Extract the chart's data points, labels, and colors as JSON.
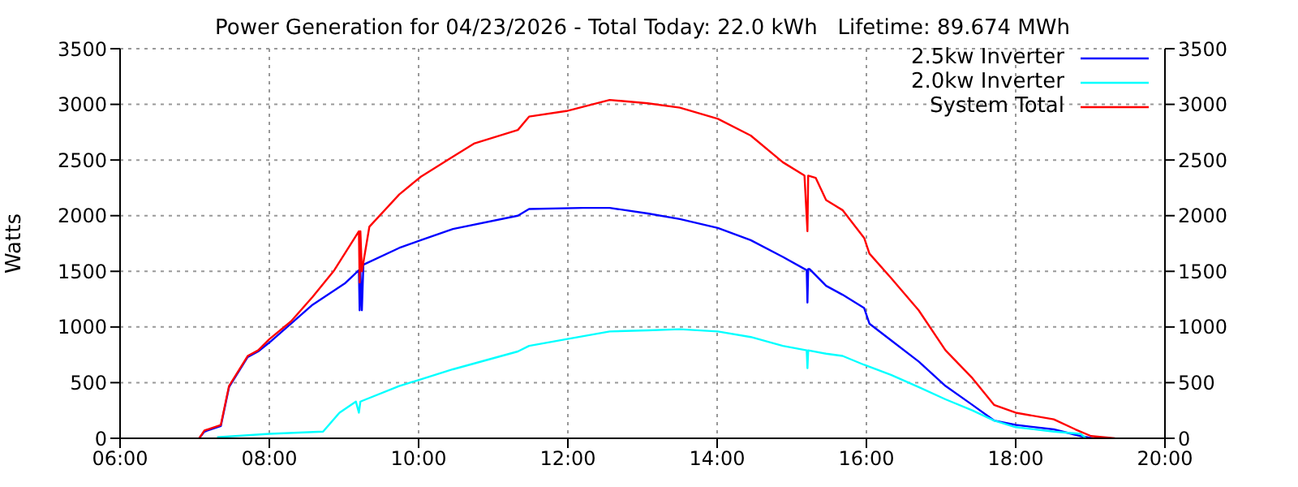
{
  "chart_data": {
    "type": "line",
    "title": "Power Generation for 04/23/2026 - Total Today: 22.0 kWh   Lifetime: 89.674 MWh",
    "ylabel": "Watts",
    "xlim": [
      6,
      20
    ],
    "xticks": [
      {
        "value": 6,
        "label": "06:00"
      },
      {
        "value": 8,
        "label": "08:00"
      },
      {
        "value": 10,
        "label": "10:00"
      },
      {
        "value": 12,
        "label": "12:00"
      },
      {
        "value": 14,
        "label": "14:00"
      },
      {
        "value": 16,
        "label": "16:00"
      },
      {
        "value": 18,
        "label": "18:00"
      },
      {
        "value": 20,
        "label": "20:00"
      }
    ],
    "ylim": [
      0,
      3500
    ],
    "yticks": [
      0,
      500,
      1000,
      1500,
      2000,
      2500,
      3000,
      3500
    ],
    "y2lim": [
      0,
      3500
    ],
    "y2ticks": [
      0,
      500,
      1000,
      1500,
      2000,
      2500,
      3000,
      3500
    ],
    "grid": true,
    "legend": "top right",
    "marker": "none",
    "line_style": "solid",
    "series": [
      {
        "name": "2.5kw Inverter",
        "color": "#0000ff",
        "x": [
          7.06,
          7.13,
          7.35,
          7.46,
          7.71,
          7.85,
          8.0,
          8.58,
          9.01,
          9.2,
          9.21,
          9.22,
          9.24,
          9.26,
          9.74,
          10.03,
          10.46,
          11.33,
          11.48,
          12.2,
          12.56,
          13.07,
          13.5,
          14.01,
          14.45,
          14.88,
          15.2,
          15.21,
          15.22,
          15.24,
          15.46,
          15.68,
          15.97,
          16.04,
          16.33,
          16.7,
          17.06,
          17.42,
          17.71,
          18.0,
          18.51,
          18.87,
          19.03
        ],
        "values": [
          0,
          60,
          110,
          460,
          730,
          780,
          860,
          1200,
          1390,
          1510,
          1150,
          1510,
          1150,
          1560,
          1710,
          1780,
          1880,
          2000,
          2060,
          2070,
          2070,
          2020,
          1970,
          1890,
          1780,
          1630,
          1510,
          1220,
          1520,
          1520,
          1370,
          1290,
          1170,
          1030,
          880,
          690,
          470,
          300,
          160,
          120,
          80,
          20,
          0
        ]
      },
      {
        "name": "2.0kw Inverter",
        "color": "#00ffff",
        "x": [
          7.3,
          8.0,
          8.72,
          8.94,
          9.16,
          9.2,
          9.22,
          9.74,
          10.03,
          10.46,
          11.33,
          11.48,
          11.98,
          12.56,
          13.07,
          13.5,
          14.01,
          14.45,
          14.88,
          15.2,
          15.21,
          15.22,
          15.46,
          15.68,
          15.97,
          16.33,
          16.7,
          17.06,
          17.42,
          17.71,
          18.0,
          18.51,
          18.87,
          18.94
        ],
        "values": [
          10,
          40,
          60,
          230,
          330,
          230,
          330,
          470,
          530,
          620,
          780,
          830,
          890,
          960,
          970,
          980,
          960,
          910,
          830,
          790,
          630,
          790,
          760,
          740,
          660,
          570,
          460,
          350,
          250,
          160,
          100,
          60,
          40,
          0
        ]
      },
      {
        "name": "System Total",
        "color": "#ff0000",
        "x": [
          7.06,
          7.13,
          7.35,
          7.46,
          7.71,
          7.85,
          8.0,
          8.29,
          8.58,
          8.87,
          9.2,
          9.21,
          9.22,
          9.24,
          9.34,
          9.74,
          10.03,
          10.46,
          10.75,
          11.33,
          11.48,
          11.98,
          12.56,
          13.07,
          13.5,
          14.01,
          14.45,
          14.88,
          15.17,
          15.21,
          15.22,
          15.32,
          15.46,
          15.68,
          15.97,
          16.04,
          16.33,
          16.7,
          17.06,
          17.42,
          17.71,
          18.0,
          18.51,
          18.8,
          19.01,
          19.33
        ],
        "values": [
          0,
          70,
          120,
          470,
          740,
          790,
          890,
          1050,
          1270,
          1510,
          1860,
          1400,
          1860,
          1500,
          1900,
          2190,
          2350,
          2530,
          2650,
          2770,
          2890,
          2940,
          3040,
          3010,
          2970,
          2870,
          2720,
          2480,
          2360,
          1860,
          2360,
          2340,
          2140,
          2050,
          1800,
          1660,
          1440,
          1150,
          790,
          540,
          300,
          230,
          170,
          80,
          20,
          0
        ]
      }
    ]
  }
}
